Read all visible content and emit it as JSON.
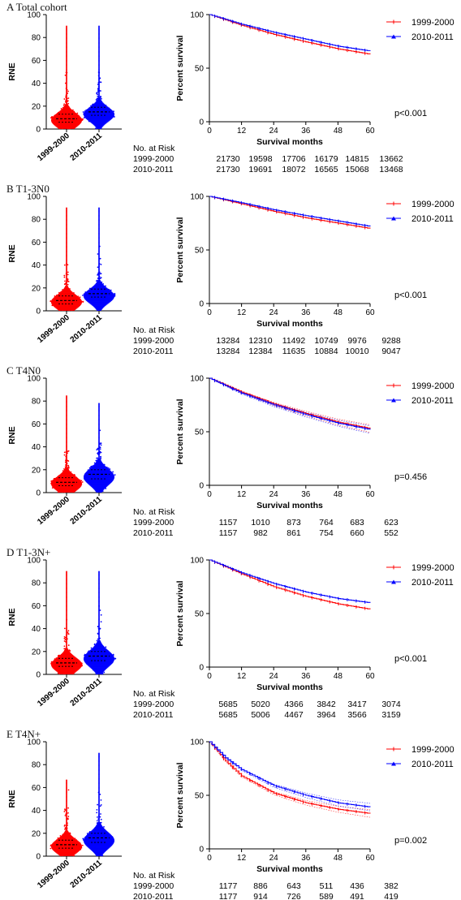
{
  "colors": {
    "group1": "#ff0000",
    "group2": "#0000ff",
    "axis": "#000000"
  },
  "chart_data": [
    {
      "type": "scatter",
      "letter": "A",
      "title": "Total cohort",
      "violin": {
        "ylabel": "RNE",
        "ylim": [
          0,
          100
        ],
        "yticks": [
          0,
          20,
          40,
          60,
          80,
          100
        ],
        "categories": [
          "1999-2000",
          "2010-2011"
        ],
        "medians": [
          9,
          15
        ],
        "q1": [
          6,
          12
        ],
        "q3": [
          13,
          19
        ],
        "maxes": [
          90,
          90
        ]
      },
      "km": {
        "type": "line",
        "ylabel": "Percent survival",
        "xlabel": "Survival months",
        "xlim": [
          0,
          60
        ],
        "ylim": [
          0,
          100
        ],
        "xticks": [
          0,
          12,
          24,
          36,
          48,
          60
        ],
        "yticks": [
          0,
          50,
          100
        ],
        "ci_bands": false,
        "series": [
          {
            "name": "1999-2000",
            "x": [
              0,
              12,
              24,
              36,
              48,
              60
            ],
            "values": [
              100,
              90,
              81.5,
              74.5,
              68,
              63
            ]
          },
          {
            "name": "2010-2011",
            "x": [
              0,
              12,
              24,
              36,
              48,
              60
            ],
            "values": [
              100,
              91,
              83.5,
              77,
              70.5,
              66
            ]
          }
        ],
        "p_value": "p<0.001"
      },
      "risk": {
        "header": "No. at Risk",
        "rows": [
          {
            "label": "1999-2000",
            "values": [
              "21730",
              "19598",
              "17706",
              "16179",
              "14815",
              "13662"
            ]
          },
          {
            "label": "2010-2011",
            "values": [
              "21730",
              "19691",
              "18072",
              "16565",
              "15068",
              "13468"
            ]
          }
        ]
      }
    },
    {
      "type": "scatter",
      "letter": "B",
      "title": "T1-3N0",
      "violin": {
        "ylabel": "RNE",
        "ylim": [
          0,
          100
        ],
        "yticks": [
          0,
          20,
          40,
          60,
          80,
          100
        ],
        "categories": [
          "1999-2000",
          "2010-2011"
        ],
        "medians": [
          9,
          15
        ],
        "q1": [
          6,
          12
        ],
        "q3": [
          13,
          19
        ],
        "maxes": [
          90,
          90
        ]
      },
      "km": {
        "type": "line",
        "ylabel": "Percent survival",
        "xlabel": "Survival months",
        "xlim": [
          0,
          60
        ],
        "ylim": [
          0,
          100
        ],
        "xticks": [
          0,
          12,
          24,
          36,
          48,
          60
        ],
        "yticks": [
          0,
          50,
          100
        ],
        "ci_bands": false,
        "series": [
          {
            "name": "1999-2000",
            "x": [
              0,
              12,
              24,
              36,
              48,
              60
            ],
            "values": [
              100,
              93,
              86,
              80,
              75,
              70
            ]
          },
          {
            "name": "2010-2011",
            "x": [
              0,
              12,
              24,
              36,
              48,
              60
            ],
            "values": [
              100,
              94,
              87.5,
              82,
              77,
              72
            ]
          }
        ],
        "p_value": "p<0.001"
      },
      "risk": {
        "header": "No. at Risk",
        "rows": [
          {
            "label": "1999-2000",
            "values": [
              "13284",
              "12310",
              "11492",
              "10749",
              "9976",
              "9288"
            ]
          },
          {
            "label": "2010-2011",
            "values": [
              "13284",
              "12384",
              "11635",
              "10884",
              "10010",
              "9047"
            ]
          }
        ]
      }
    },
    {
      "type": "scatter",
      "letter": "C",
      "title": "T4N0",
      "violin": {
        "ylabel": "RNE",
        "ylim": [
          0,
          100
        ],
        "yticks": [
          0,
          20,
          40,
          60,
          80,
          100
        ],
        "categories": [
          "1999-2000",
          "2010-2011"
        ],
        "medians": [
          9,
          16
        ],
        "q1": [
          6,
          12
        ],
        "q3": [
          13,
          20
        ],
        "maxes": [
          85,
          78
        ]
      },
      "km": {
        "type": "line",
        "ylabel": "Percent survival",
        "xlabel": "Survival months",
        "xlim": [
          0,
          60
        ],
        "ylim": [
          0,
          100
        ],
        "xticks": [
          0,
          12,
          24,
          36,
          48,
          60
        ],
        "yticks": [
          0,
          50,
          100
        ],
        "ci_bands": true,
        "series": [
          {
            "name": "1999-2000",
            "x": [
              0,
              12,
              24,
              36,
              48,
              60
            ],
            "values": [
              100,
              87,
              76,
              67,
              59,
              53
            ]
          },
          {
            "name": "2010-2011",
            "x": [
              0,
              12,
              24,
              36,
              48,
              60
            ],
            "values": [
              100,
              86,
              75,
              66,
              58,
              52
            ]
          }
        ],
        "p_value": "p=0.456"
      },
      "risk": {
        "header": "No. at Risk",
        "rows": [
          {
            "label": "1999-2000",
            "values": [
              "1157",
              "1010",
              "873",
              "764",
              "683",
              "623"
            ]
          },
          {
            "label": "2010-2011",
            "values": [
              "1157",
              "982",
              "861",
              "754",
              "660",
              "552"
            ]
          }
        ]
      }
    },
    {
      "type": "scatter",
      "letter": "D",
      "title": "T1-3N+",
      "violin": {
        "ylabel": "RNE",
        "ylim": [
          0,
          100
        ],
        "yticks": [
          0,
          20,
          40,
          60,
          80,
          100
        ],
        "categories": [
          "1999-2000",
          "2010-2011"
        ],
        "medians": [
          10,
          16
        ],
        "q1": [
          7,
          12
        ],
        "q3": [
          14,
          20
        ],
        "maxes": [
          90,
          90
        ]
      },
      "km": {
        "type": "line",
        "ylabel": "Percent survival",
        "xlabel": "Survival months",
        "xlim": [
          0,
          60
        ],
        "ylim": [
          0,
          100
        ],
        "xticks": [
          0,
          12,
          24,
          36,
          48,
          60
        ],
        "yticks": [
          0,
          50,
          100
        ],
        "ci_bands": false,
        "series": [
          {
            "name": "1999-2000",
            "x": [
              0,
              12,
              24,
              36,
              48,
              60
            ],
            "values": [
              100,
              87,
              75,
              66,
              59,
              54
            ]
          },
          {
            "name": "2010-2011",
            "x": [
              0,
              12,
              24,
              36,
              48,
              60
            ],
            "values": [
              100,
              88,
              78,
              70,
              64,
              60
            ]
          }
        ],
        "p_value": "p<0.001"
      },
      "risk": {
        "header": "No. at Risk",
        "rows": [
          {
            "label": "1999-2000",
            "values": [
              "5685",
              "5020",
              "4366",
              "3842",
              "3417",
              "3074"
            ]
          },
          {
            "label": "2010-2011",
            "values": [
              "5685",
              "5006",
              "4467",
              "3964",
              "3566",
              "3159"
            ]
          }
        ]
      }
    },
    {
      "type": "scatter",
      "letter": "E",
      "title": "T4N+",
      "violin": {
        "ylabel": "RNE",
        "ylim": [
          0,
          100
        ],
        "yticks": [
          0,
          20,
          40,
          60,
          80,
          100
        ],
        "categories": [
          "1999-2000",
          "2010-2011"
        ],
        "medians": [
          10,
          16
        ],
        "q1": [
          7,
          12
        ],
        "q3": [
          14,
          20
        ],
        "maxes": [
          67,
          90
        ]
      },
      "km": {
        "type": "line",
        "ylabel": "Percent survival",
        "xlabel": "Survival months",
        "xlim": [
          0,
          60
        ],
        "ylim": [
          0,
          100
        ],
        "xticks": [
          0,
          12,
          24,
          36,
          48,
          60
        ],
        "yticks": [
          0,
          50,
          100
        ],
        "ci_bands": true,
        "series": [
          {
            "name": "1999-2000",
            "x": [
              0,
              6,
              12,
              24,
              36,
              48,
              60
            ],
            "values": [
              100,
              82,
              68,
              52,
              43,
              37,
              33
            ]
          },
          {
            "name": "2010-2011",
            "x": [
              0,
              6,
              12,
              24,
              36,
              48,
              60
            ],
            "values": [
              100,
              85,
              74,
              59,
              50,
              43,
              39
            ]
          }
        ],
        "p_value": "p=0.002"
      },
      "risk": {
        "header": "No. at Risk",
        "rows": [
          {
            "label": "1999-2000",
            "values": [
              "1177",
              "886",
              "643",
              "511",
              "436",
              "382"
            ]
          },
          {
            "label": "2010-2011",
            "values": [
              "1177",
              "914",
              "726",
              "589",
              "491",
              "419"
            ]
          }
        ]
      }
    }
  ]
}
